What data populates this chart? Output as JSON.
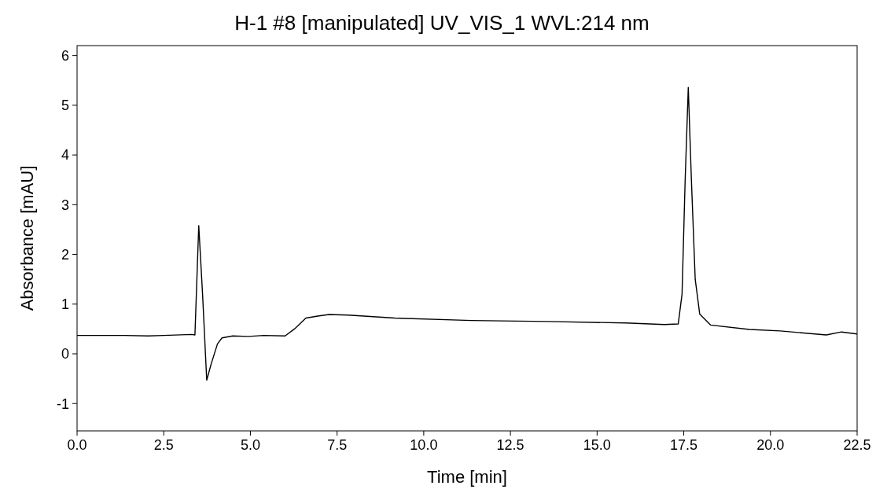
{
  "chart_data": {
    "type": "line",
    "title": "H-1 #8 [manipulated] UV_VIS_1 WVL:214 nm",
    "xlabel": "Time [min]",
    "ylabel": "Absorbance [mAU]",
    "x": [
      0,
      1.38,
      2.05,
      2.49,
      3.31,
      3.4,
      3.51,
      3.62,
      3.74,
      3.87,
      4.05,
      4.18,
      4.49,
      4.94,
      5.38,
      6.0,
      6.27,
      6.6,
      6.94,
      7.27,
      7.83,
      9.16,
      11.38,
      13.6,
      15.83,
      16.94,
      17.34,
      17.45,
      17.54,
      17.63,
      17.72,
      17.83,
      17.96,
      18.27,
      19.39,
      20.28,
      21.61,
      22.05,
      22.5
    ],
    "series": [
      {
        "color": "#000000",
        "values": [
          0.37,
          0.37,
          0.36,
          0.37,
          0.39,
          0.38,
          2.58,
          1.2,
          -0.53,
          -0.2,
          0.2,
          0.32,
          0.36,
          0.35,
          0.37,
          0.36,
          0.5,
          0.72,
          0.76,
          0.79,
          0.78,
          0.72,
          0.67,
          0.65,
          0.62,
          0.59,
          0.6,
          1.2,
          3.5,
          5.36,
          3.5,
          1.5,
          0.8,
          0.58,
          0.49,
          0.46,
          0.38,
          0.44,
          0.4
        ]
      }
    ],
    "xlim": [
      0,
      22.5
    ],
    "xticks": [
      {
        "value": 0,
        "label": "0.0"
      },
      2.5,
      {
        "value": 5,
        "label": "5.0"
      },
      7.5,
      {
        "value": 10,
        "label": "10.0"
      },
      12.5,
      {
        "value": 15,
        "label": "15.0"
      },
      17.5,
      {
        "value": 20,
        "label": "20.0"
      },
      22.5
    ],
    "ylim": [
      -1.55,
      6.2
    ],
    "yticks": [
      -1,
      0,
      1,
      2,
      3,
      4,
      5,
      6
    ],
    "grid": false,
    "marker": "none",
    "line_style": "solid"
  }
}
